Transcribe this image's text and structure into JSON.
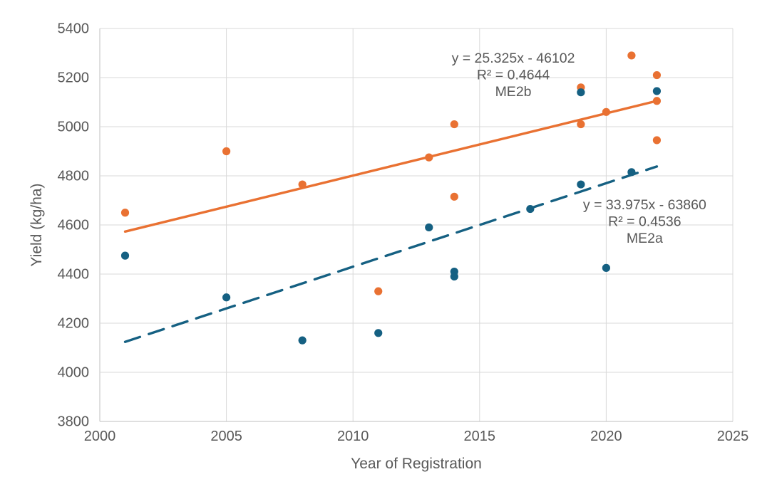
{
  "chart_data": {
    "type": "scatter",
    "title": "",
    "xlabel": "Year of Registration",
    "ylabel": "Yield (kg/ha)",
    "xlim": [
      2000,
      2025
    ],
    "ylim": [
      3800,
      5400
    ],
    "xticks": [
      2000,
      2005,
      2010,
      2015,
      2020,
      2025
    ],
    "yticks": [
      3800,
      4000,
      4200,
      4400,
      4600,
      4800,
      5000,
      5200,
      5400
    ],
    "grid": true,
    "legend_position": "none",
    "colors": {
      "me2a_blue": "#156082",
      "me2b_orange": "#E97132",
      "gridline": "#D9D9D9",
      "axis_line": "#BFBFBF",
      "text_gray": "#595959"
    },
    "series": [
      {
        "name": "ME2b",
        "color": "#E97132",
        "marker": "circle",
        "points": [
          [
            2001,
            4650
          ],
          [
            2005,
            4900
          ],
          [
            2008,
            4765
          ],
          [
            2011,
            4330
          ],
          [
            2013,
            4875
          ],
          [
            2014,
            5010
          ],
          [
            2014,
            4715
          ],
          [
            2019,
            5160
          ],
          [
            2019,
            5010
          ],
          [
            2020,
            5060
          ],
          [
            2021,
            5290
          ],
          [
            2022,
            5210
          ],
          [
            2022,
            5105
          ],
          [
            2022,
            4945
          ]
        ],
        "trendline": {
          "style": "solid",
          "x1": 2001,
          "y1": 4573,
          "x2": 2022,
          "y2": 5105,
          "equation": "y = 25.325x - 46102",
          "r2": "R² = 0.4644",
          "label": "ME2b"
        }
      },
      {
        "name": "ME2a",
        "color": "#156082",
        "marker": "circle",
        "points": [
          [
            2001,
            4475
          ],
          [
            2005,
            4305
          ],
          [
            2008,
            4130
          ],
          [
            2011,
            4160
          ],
          [
            2013,
            4590
          ],
          [
            2014,
            4410
          ],
          [
            2014,
            4390
          ],
          [
            2017,
            4665
          ],
          [
            2019,
            5140
          ],
          [
            2019,
            4765
          ],
          [
            2020,
            4425
          ],
          [
            2021,
            4815
          ],
          [
            2022,
            5145
          ]
        ],
        "trendline": {
          "style": "dashed",
          "x1": 2001,
          "y1": 4124,
          "x2": 2022,
          "y2": 4838,
          "equation": "y = 33.975x - 63860",
          "r2": "R² = 0.4536",
          "label": "ME2a"
        }
      }
    ],
    "annotations": [
      {
        "series": "ME2b",
        "lines": [
          "y = 25.325x - 46102",
          "R² = 0.4644",
          "ME2b"
        ],
        "anchor_x": 2016.33,
        "anchor_y": 5278
      },
      {
        "series": "ME2a",
        "lines": [
          "y = 33.975x - 63860",
          "R² = 0.4536",
          "ME2a"
        ],
        "anchor_x": 2021.52,
        "anchor_y": 4681
      }
    ]
  }
}
